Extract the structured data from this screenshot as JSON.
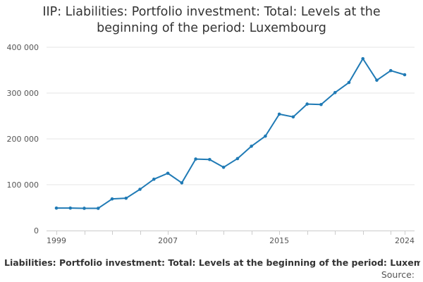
{
  "chart_data": {
    "type": "line",
    "title_line1": "IIP: Liabilities: Portfolio investment: Total: Levels at the",
    "title_line2": "beginning of the period: Luxembourg",
    "x": [
      1999,
      2000,
      2001,
      2002,
      2003,
      2004,
      2005,
      2006,
      2007,
      2008,
      2009,
      2010,
      2011,
      2012,
      2013,
      2014,
      2015,
      2016,
      2017,
      2018,
      2019,
      2020,
      2021,
      2022,
      2023,
      2024
    ],
    "series": [
      {
        "name": "IIP: Liabilities: Portfolio investment: Total: Levels at the beginning of the period: Luxembourg",
        "values": [
          49000,
          49000,
          48500,
          48500,
          69000,
          70500,
          90000,
          112000,
          125000,
          104000,
          156000,
          155000,
          138000,
          157000,
          184000,
          206000,
          254000,
          248000,
          276000,
          275000,
          301000,
          323000,
          375000,
          328000,
          349000,
          340000
        ],
        "color": "#1f7ab5"
      }
    ],
    "ylim": [
      0,
      400000
    ],
    "yticks": [
      0,
      100000,
      200000,
      300000,
      400000
    ],
    "ytick_labels": [
      "0",
      "100 000",
      "200 000",
      "300 000",
      "400 000"
    ],
    "xticks": [
      1999,
      2007,
      2015,
      2024
    ],
    "xtick_labels": [
      "1999",
      "2007",
      "2015",
      "2024"
    ],
    "grid": true,
    "legend_position": "bottom"
  },
  "legend_label": "Liabilities: Portfolio investment: Total: Levels at the beginning of the period: Luxembourg",
  "source_label": "Source:"
}
